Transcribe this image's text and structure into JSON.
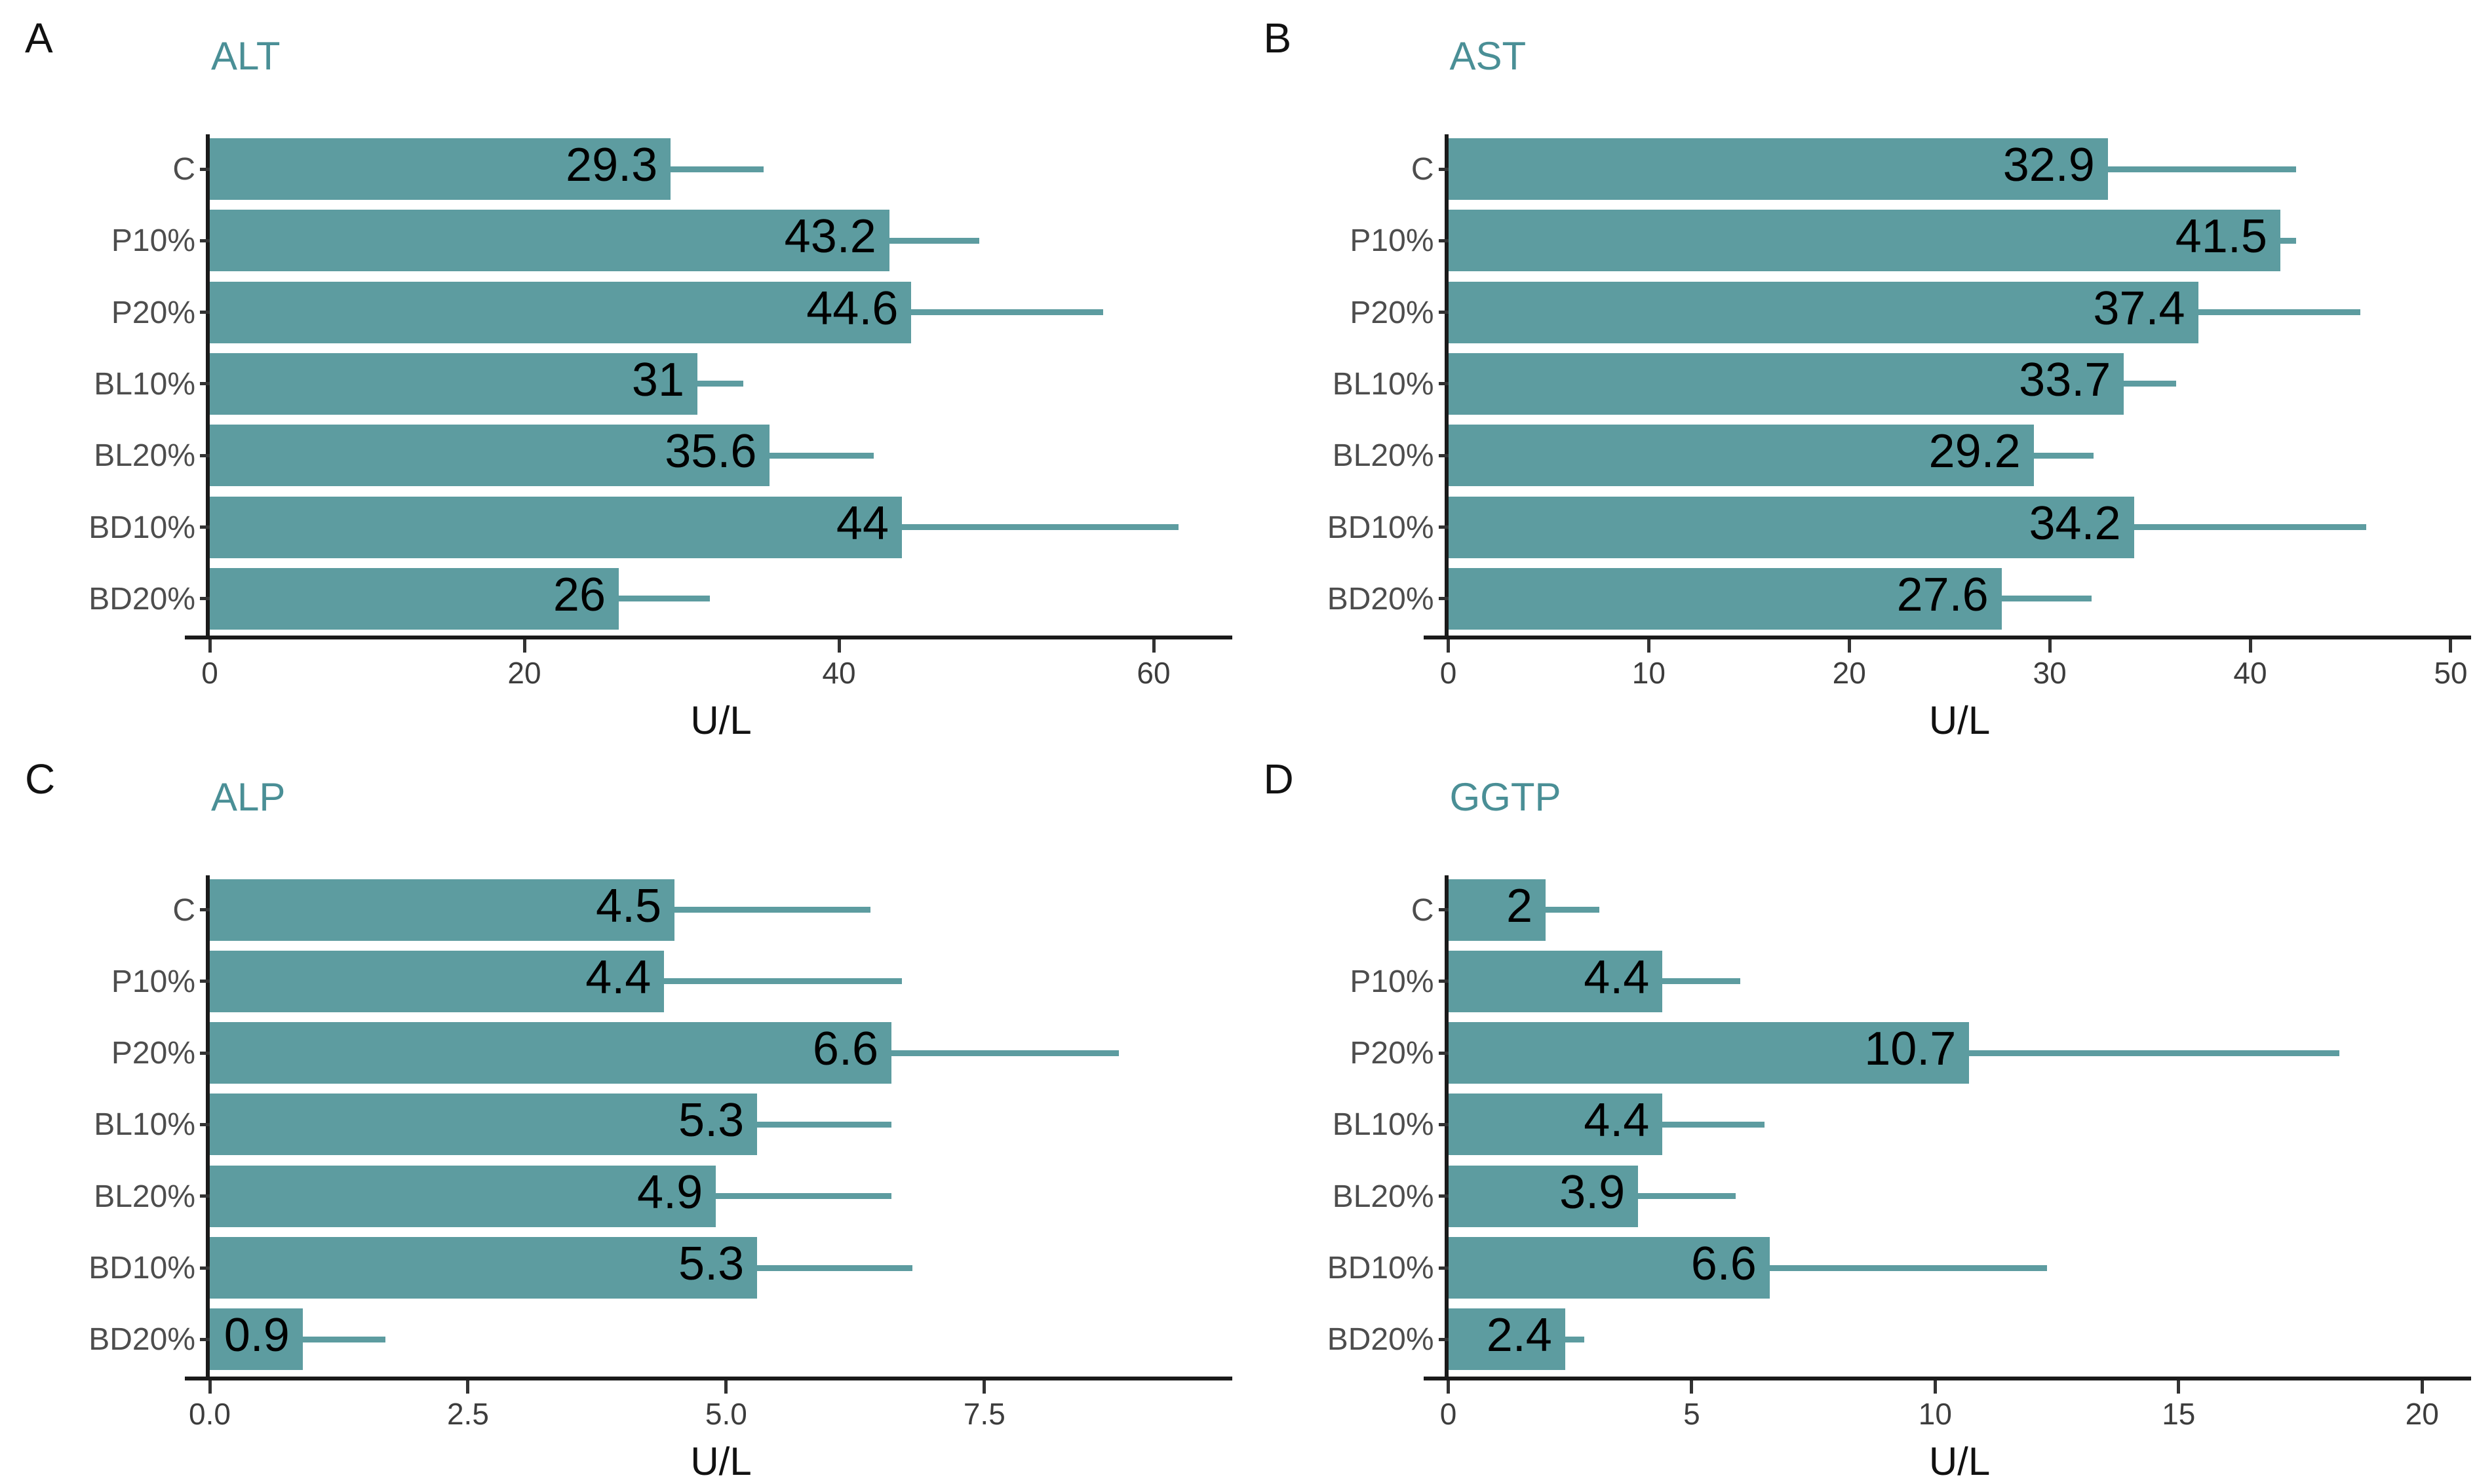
{
  "figure": {
    "x_axis_title": "U/L",
    "categories": [
      "C",
      "P10%",
      "P20%",
      "BL10%",
      "BL20%",
      "BD10%",
      "BD20%"
    ]
  },
  "colors": {
    "bar": "#5D9CA0",
    "error_bar": "#5D9CA0",
    "panel_title": "#4A8F96",
    "axis_line": "#1a1a1a",
    "category_label": "#4d4d4d",
    "tick_label": "#3d3d3d",
    "value_label": "#000000",
    "background": "#ffffff"
  },
  "chart_data": [
    {
      "type": "bar",
      "orientation": "horizontal",
      "panel_letter": "A",
      "title": "ALT",
      "xlabel": "U/L",
      "categories": [
        "C",
        "P10%",
        "P20%",
        "BL10%",
        "BL20%",
        "BD10%",
        "BD20%"
      ],
      "values": [
        29.3,
        43.2,
        44.6,
        31,
        35.6,
        44,
        26
      ],
      "value_labels": [
        "29.3",
        "43.2",
        "44.6",
        "31",
        "35.6",
        "44",
        "26"
      ],
      "error_upper": [
        35.2,
        48.9,
        56.8,
        33.9,
        42.2,
        61.6,
        31.8
      ],
      "xlim": [
        0,
        65
      ],
      "xticks": [
        0,
        20,
        40,
        60
      ],
      "xtick_labels": [
        "0",
        "20",
        "40",
        "60"
      ]
    },
    {
      "type": "bar",
      "orientation": "horizontal",
      "panel_letter": "B",
      "title": "AST",
      "xlabel": "U/L",
      "categories": [
        "C",
        "P10%",
        "P20%",
        "BL10%",
        "BL20%",
        "BD10%",
        "BD20%"
      ],
      "values": [
        32.9,
        41.5,
        37.4,
        33.7,
        29.2,
        34.2,
        27.6
      ],
      "value_labels": [
        "32.9",
        "41.5",
        "37.4",
        "33.7",
        "29.2",
        "34.2",
        "27.6"
      ],
      "error_upper": [
        42.3,
        42.3,
        45.5,
        36.3,
        32.2,
        45.8,
        32.1
      ],
      "xlim": [
        0,
        51
      ],
      "xticks": [
        0,
        10,
        20,
        30,
        40,
        50
      ],
      "xtick_labels": [
        "0",
        "10",
        "20",
        "30",
        "40",
        "50"
      ]
    },
    {
      "type": "bar",
      "orientation": "horizontal",
      "panel_letter": "C",
      "title": "ALP",
      "xlabel": "U/L",
      "categories": [
        "C",
        "P10%",
        "P20%",
        "BL10%",
        "BL20%",
        "BD10%",
        "BD20%"
      ],
      "values": [
        4.5,
        4.4,
        6.6,
        5.3,
        4.9,
        5.3,
        0.9
      ],
      "value_labels": [
        "4.5",
        "4.4",
        "6.6",
        "5.3",
        "4.9",
        "5.3",
        "0.9"
      ],
      "error_upper": [
        6.4,
        6.7,
        8.8,
        6.6,
        6.6,
        6.8,
        1.7
      ],
      "xlim": [
        0,
        9.9
      ],
      "xticks": [
        0,
        2.5,
        5,
        7.5
      ],
      "xtick_labels": [
        "0.0",
        "2.5",
        "5.0",
        "7.5"
      ]
    },
    {
      "type": "bar",
      "orientation": "horizontal",
      "panel_letter": "D",
      "title": "GGTP",
      "xlabel": "U/L",
      "categories": [
        "C",
        "P10%",
        "P20%",
        "BL10%",
        "BL20%",
        "BD10%",
        "BD20%"
      ],
      "values": [
        2,
        4.4,
        10.7,
        4.4,
        3.9,
        6.6,
        2.4
      ],
      "value_labels": [
        "2",
        "4.4",
        "10.7",
        "4.4",
        "3.9",
        "6.6",
        "2.4"
      ],
      "error_upper": [
        3.1,
        6.0,
        18.3,
        6.5,
        5.9,
        12.3,
        2.8
      ],
      "xlim": [
        0,
        21
      ],
      "xticks": [
        0,
        5,
        10,
        15,
        20
      ],
      "xtick_labels": [
        "0",
        "5",
        "10",
        "15",
        "20"
      ]
    }
  ]
}
